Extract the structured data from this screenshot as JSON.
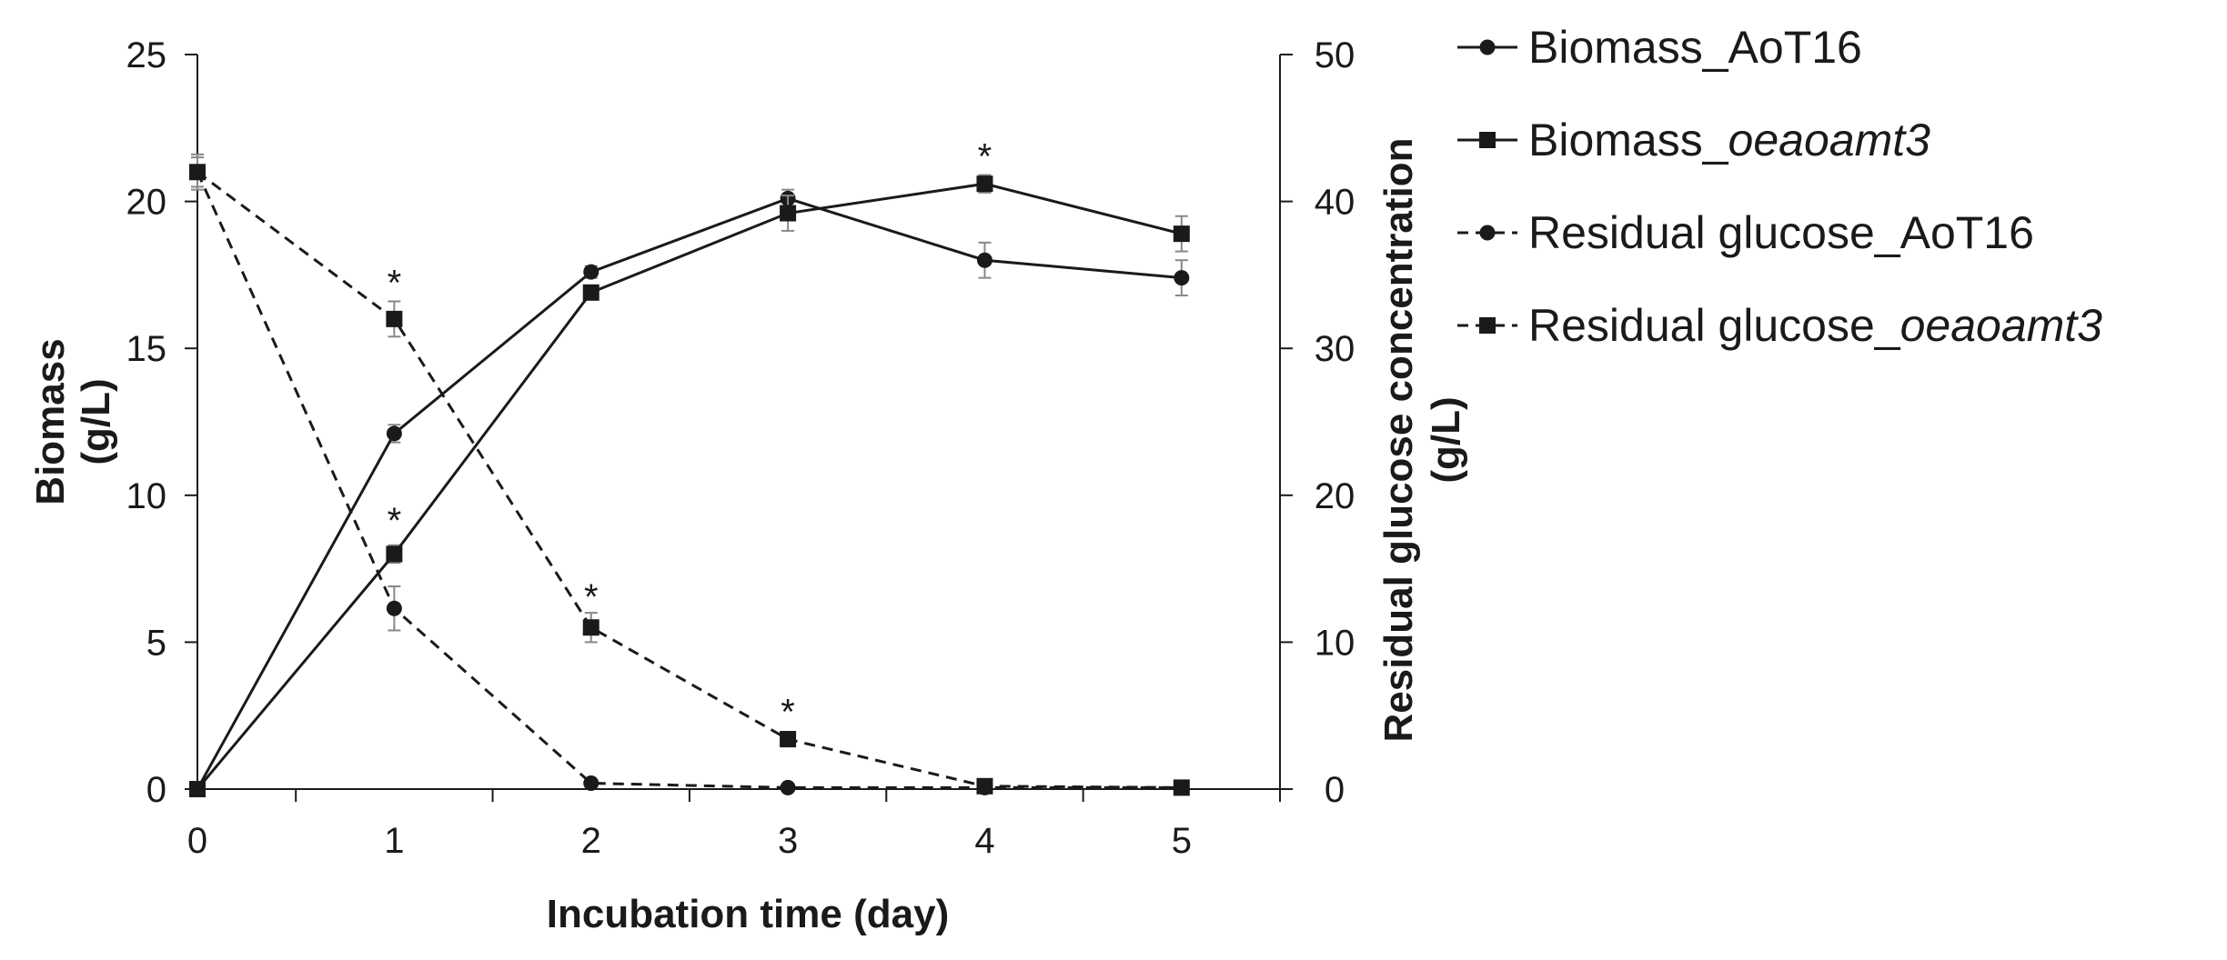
{
  "chart_data": {
    "type": "line",
    "title": "",
    "xlabel": "Incubation time (day)",
    "ylabel_left": [
      "Biomass",
      "(g/L)"
    ],
    "ylabel_right": [
      "Residual glucose concentration",
      "(g/L)"
    ],
    "x": [
      0,
      1,
      2,
      3,
      4,
      5
    ],
    "x_ticks": [
      "0",
      "1",
      "2",
      "3",
      "4",
      "5"
    ],
    "xlim": [
      0,
      5.5
    ],
    "ylim_left": [
      0,
      25
    ],
    "ylim_right": [
      0,
      50
    ],
    "y_ticks_left": [
      "0",
      "5",
      "10",
      "15",
      "20",
      "25"
    ],
    "y_ticks_right": [
      "0",
      "10",
      "20",
      "30",
      "40",
      "50"
    ],
    "grid": false,
    "legend_position": "right",
    "series": [
      {
        "name": "Biomass_AoT16",
        "legend_prefix": "Biomass_",
        "legend_suffix": "AoT16",
        "italic_suffix": false,
        "axis": "left",
        "marker": "circle",
        "line": "solid",
        "values": [
          0,
          12.1,
          17.6,
          20.1,
          18.0,
          17.4
        ],
        "errors": [
          0,
          0.3,
          0.2,
          0.3,
          0.6,
          0.6
        ]
      },
      {
        "name": "Biomass_oeaoamt3",
        "legend_prefix": "Biomass_",
        "legend_suffix": "oeaoamt3",
        "italic_suffix": true,
        "axis": "left",
        "marker": "square",
        "line": "solid",
        "values": [
          0,
          8.0,
          16.9,
          19.6,
          20.6,
          18.9
        ],
        "errors": [
          0,
          0.3,
          0.2,
          0.6,
          0.3,
          0.6
        ]
      },
      {
        "name": "Residual glucose_AoT16",
        "legend_prefix": "Residual glucose_",
        "legend_suffix": "AoT16",
        "italic_suffix": false,
        "axis": "right",
        "marker": "circle",
        "line": "dashed",
        "values": [
          42.0,
          12.3,
          0.4,
          0.1,
          0.1,
          0.1
        ],
        "errors": [
          1.2,
          1.5,
          0.2,
          0.1,
          0.1,
          0.1
        ]
      },
      {
        "name": "Residual glucose_oeaoamt3",
        "legend_prefix": "Residual glucose_",
        "legend_suffix": "oeaoamt3",
        "italic_suffix": true,
        "axis": "right",
        "marker": "square",
        "line": "dashed",
        "values": [
          42.0,
          32.0,
          11.0,
          3.4,
          0.2,
          0.1
        ],
        "errors": [
          1.0,
          1.2,
          1.0,
          0.5,
          0.1,
          0.1
        ]
      }
    ],
    "annotations": [
      {
        "text": "*",
        "x": 1,
        "y": 17.5,
        "axis": "left"
      },
      {
        "text": "*",
        "x": 1,
        "y": 9.4,
        "axis": "left"
      },
      {
        "text": "*",
        "x": 2,
        "y": 6.8,
        "axis": "left"
      },
      {
        "text": "*",
        "x": 3,
        "y": 2.9,
        "axis": "left"
      },
      {
        "text": "*",
        "x": 4,
        "y": 21.8,
        "axis": "left"
      }
    ]
  }
}
